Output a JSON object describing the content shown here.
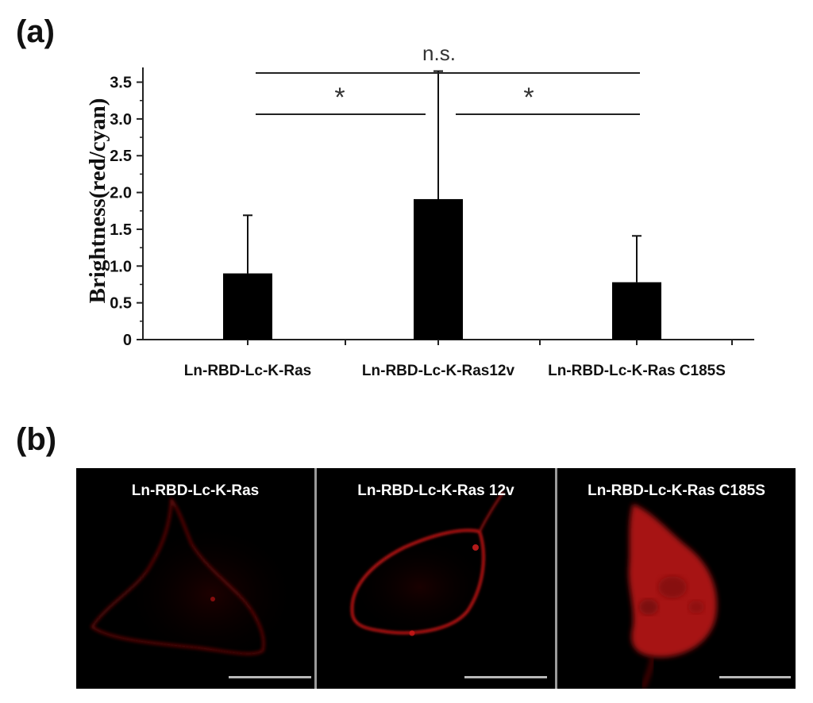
{
  "panels": {
    "a_label": "(a)",
    "b_label": "(b)"
  },
  "chart_data": {
    "type": "bar",
    "ylabel": "Brightness(red/cyan)",
    "ylim": [
      0,
      3.7
    ],
    "yticks": [
      0,
      0.5,
      1.0,
      1.5,
      2.0,
      2.5,
      3.0,
      3.5
    ],
    "ytick_labels": [
      "0",
      "0.5",
      "1.0",
      "1.5",
      "2.0",
      "2.5",
      "3.0",
      "3.5"
    ],
    "categories": [
      "Ln-RBD-Lc-K-Ras",
      "Ln-RBD-Lc-K-Ras12v",
      "Ln-RBD-Lc-K-Ras C185S"
    ],
    "values": [
      0.9,
      1.91,
      0.78
    ],
    "error_upper": [
      0.79,
      1.74,
      0.63
    ],
    "bar_color": "#000000",
    "significance": [
      {
        "from": 0,
        "to": 2,
        "label": "n.s."
      },
      {
        "from": 0,
        "to": 1,
        "label": "*"
      },
      {
        "from": 1,
        "to": 2,
        "label": "*"
      }
    ]
  },
  "micrographs": [
    {
      "title": "Ln-RBD-Lc-K-Ras",
      "pattern": "dim-membrane"
    },
    {
      "title": "Ln-RBD-Lc-K-Ras 12v",
      "pattern": "bright-membrane"
    },
    {
      "title": "Ln-RBD-Lc-K-Ras C185S",
      "pattern": "cytoplasmic"
    }
  ]
}
